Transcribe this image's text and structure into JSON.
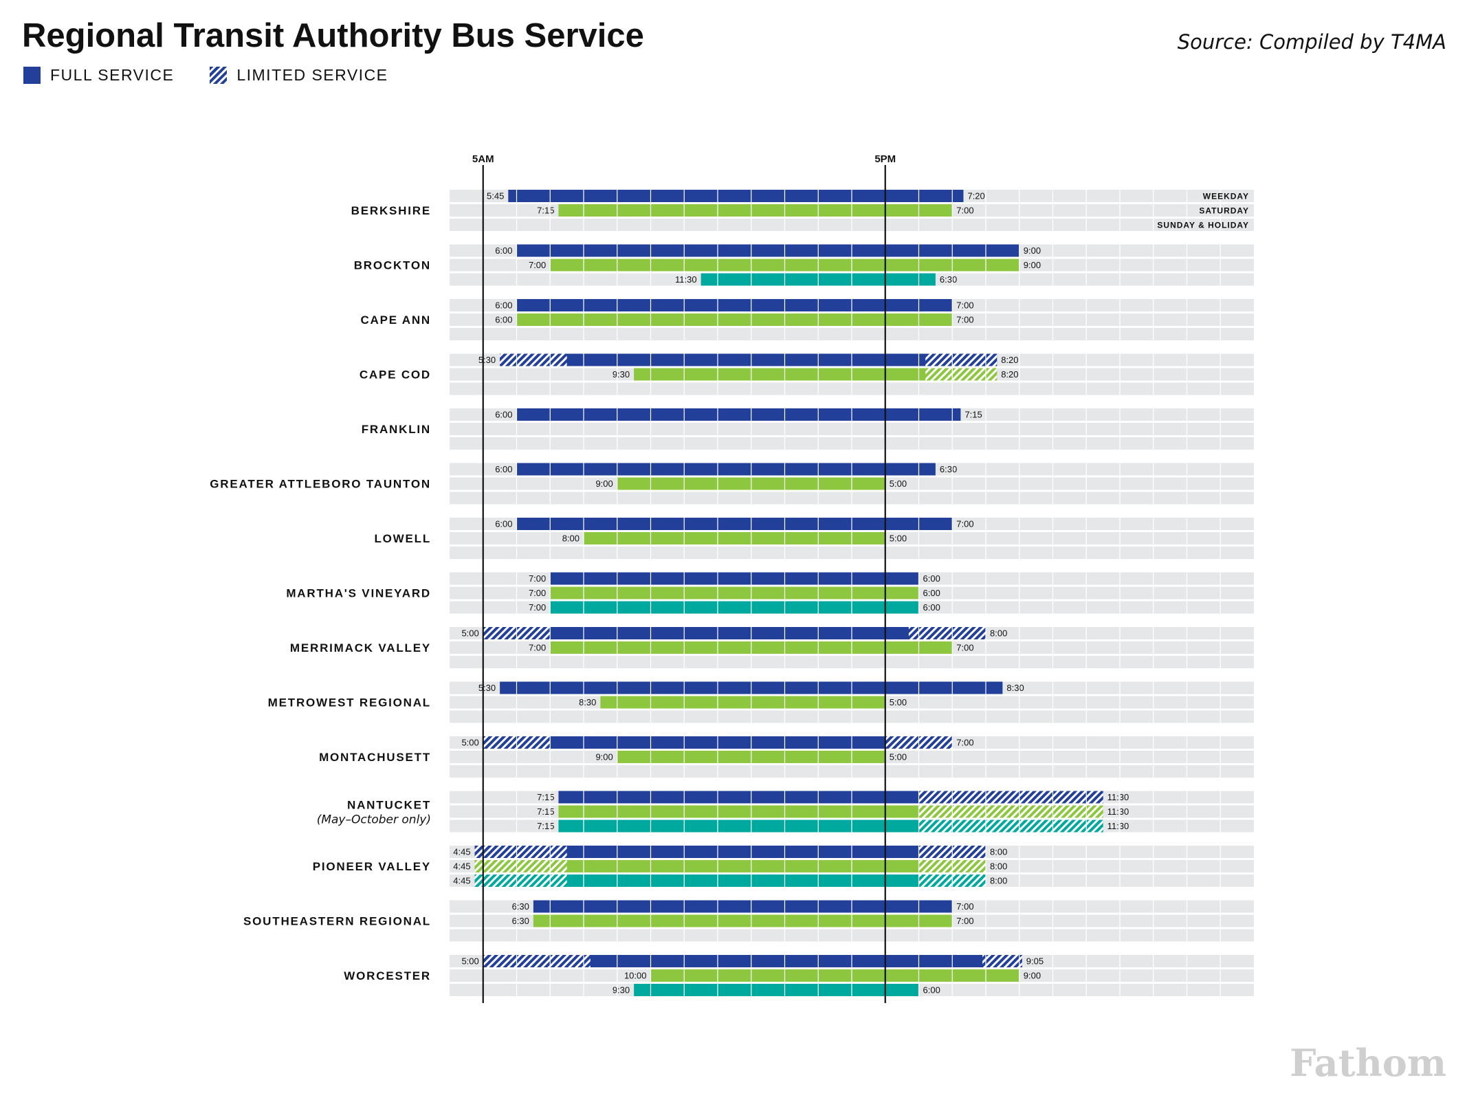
{
  "header": {
    "title": "Regional Transit Authority Bus Service",
    "source": "Source: Compiled by T4MA",
    "logo": "Fathom"
  },
  "legend": {
    "full_label": "FULL SERVICE",
    "limited_label": "LIMITED SERVICE"
  },
  "colors": {
    "weekday": "#22409a",
    "saturday": "#8dc63f",
    "sunday": "#00a99d",
    "track": "#e6e7e8"
  },
  "chart_data": {
    "type": "gantt",
    "axis": {
      "start_hour": 4,
      "end_hour": 28,
      "markers": [
        {
          "hour": 5,
          "label": "5AM"
        },
        {
          "hour": 17,
          "label": "5PM"
        }
      ]
    },
    "day_types": [
      "WEEKDAY",
      "SATURDAY",
      "SUNDAY & HOLIDAY"
    ],
    "agencies": [
      {
        "name": "BERKSHIRE",
        "services": [
          {
            "day": 0,
            "start": 5.75,
            "end": 19.333,
            "start_label": "5:45",
            "end_label": "7:20",
            "limited": []
          },
          {
            "day": 1,
            "start": 7.25,
            "end": 19.0,
            "start_label": "7:15",
            "end_label": "7:00",
            "limited": []
          }
        ]
      },
      {
        "name": "BROCKTON",
        "services": [
          {
            "day": 0,
            "start": 6.0,
            "end": 21.0,
            "start_label": "6:00",
            "end_label": "9:00",
            "limited": []
          },
          {
            "day": 1,
            "start": 7.0,
            "end": 21.0,
            "start_label": "7:00",
            "end_label": "9:00",
            "limited": []
          },
          {
            "day": 2,
            "start": 11.5,
            "end": 18.5,
            "start_label": "11:30",
            "end_label": "6:30",
            "limited": []
          }
        ]
      },
      {
        "name": "CAPE ANN",
        "services": [
          {
            "day": 0,
            "start": 6.0,
            "end": 19.0,
            "start_label": "6:00",
            "end_label": "7:00",
            "limited": []
          },
          {
            "day": 1,
            "start": 6.0,
            "end": 19.0,
            "start_label": "6:00",
            "end_label": "7:00",
            "limited": []
          }
        ]
      },
      {
        "name": "CAPE COD",
        "services": [
          {
            "day": 0,
            "start": 5.5,
            "end": 20.333,
            "start_label": "5:30",
            "end_label": "8:20",
            "limited": [
              [
                5.5,
                7.5
              ],
              [
                18.2,
                20.333
              ]
            ]
          },
          {
            "day": 1,
            "start": 9.5,
            "end": 20.333,
            "start_label": "9:30",
            "end_label": "8:20",
            "limited": [
              [
                18.2,
                20.333
              ]
            ]
          }
        ]
      },
      {
        "name": "FRANKLIN",
        "services": [
          {
            "day": 0,
            "start": 6.0,
            "end": 19.25,
            "start_label": "6:00",
            "end_label": "7:15",
            "limited": []
          }
        ]
      },
      {
        "name": "GREATER ATTLEBORO TAUNTON",
        "services": [
          {
            "day": 0,
            "start": 6.0,
            "end": 18.5,
            "start_label": "6:00",
            "end_label": "6:30",
            "limited": []
          },
          {
            "day": 1,
            "start": 9.0,
            "end": 17.0,
            "start_label": "9:00",
            "end_label": "5:00",
            "limited": []
          }
        ]
      },
      {
        "name": "LOWELL",
        "services": [
          {
            "day": 0,
            "start": 6.0,
            "end": 19.0,
            "start_label": "6:00",
            "end_label": "7:00",
            "limited": []
          },
          {
            "day": 1,
            "start": 8.0,
            "end": 17.0,
            "start_label": "8:00",
            "end_label": "5:00",
            "limited": []
          }
        ]
      },
      {
        "name": "MARTHA'S VINEYARD",
        "services": [
          {
            "day": 0,
            "start": 7.0,
            "end": 18.0,
            "start_label": "7:00",
            "end_label": "6:00",
            "limited": []
          },
          {
            "day": 1,
            "start": 7.0,
            "end": 18.0,
            "start_label": "7:00",
            "end_label": "6:00",
            "limited": []
          },
          {
            "day": 2,
            "start": 7.0,
            "end": 18.0,
            "start_label": "7:00",
            "end_label": "6:00",
            "limited": []
          }
        ]
      },
      {
        "name": "MERRIMACK VALLEY",
        "services": [
          {
            "day": 0,
            "start": 5.0,
            "end": 20.0,
            "start_label": "5:00",
            "end_label": "8:00",
            "limited": [
              [
                5.0,
                7.0
              ],
              [
                17.7,
                20.0
              ]
            ]
          },
          {
            "day": 1,
            "start": 7.0,
            "end": 19.0,
            "start_label": "7:00",
            "end_label": "7:00",
            "limited": []
          }
        ]
      },
      {
        "name": "METROWEST REGIONAL",
        "services": [
          {
            "day": 0,
            "start": 5.5,
            "end": 20.5,
            "start_label": "5:30",
            "end_label": "8:30",
            "limited": []
          },
          {
            "day": 1,
            "start": 8.5,
            "end": 17.0,
            "start_label": "8:30",
            "end_label": "5:00",
            "limited": []
          }
        ]
      },
      {
        "name": "MONTACHUSETT",
        "services": [
          {
            "day": 0,
            "start": 5.0,
            "end": 19.0,
            "start_label": "5:00",
            "end_label": "7:00",
            "limited": [
              [
                5.0,
                7.0
              ],
              [
                17.0,
                19.0
              ]
            ]
          },
          {
            "day": 1,
            "start": 9.0,
            "end": 17.0,
            "start_label": "9:00",
            "end_label": "5:00",
            "limited": []
          }
        ]
      },
      {
        "name": "NANTUCKET",
        "sub": "(May–October only)",
        "services": [
          {
            "day": 0,
            "start": 7.25,
            "end": 23.5,
            "start_label": "7:15",
            "end_label": "11:30",
            "limited": [
              [
                18.0,
                23.5
              ]
            ]
          },
          {
            "day": 1,
            "start": 7.25,
            "end": 23.5,
            "start_label": "7:15",
            "end_label": "11:30",
            "limited": [
              [
                18.0,
                23.5
              ]
            ]
          },
          {
            "day": 2,
            "start": 7.25,
            "end": 23.5,
            "start_label": "7:15",
            "end_label": "11:30",
            "limited": [
              [
                18.0,
                23.5
              ]
            ]
          }
        ]
      },
      {
        "name": "PIONEER VALLEY",
        "services": [
          {
            "day": 0,
            "start": 4.75,
            "end": 20.0,
            "start_label": "4:45",
            "end_label": "8:00",
            "limited": [
              [
                4.75,
                7.5
              ],
              [
                18.0,
                20.0
              ]
            ]
          },
          {
            "day": 1,
            "start": 4.75,
            "end": 20.0,
            "start_label": "4:45",
            "end_label": "8:00",
            "limited": [
              [
                4.75,
                7.5
              ],
              [
                18.0,
                20.0
              ]
            ]
          },
          {
            "day": 2,
            "start": 4.75,
            "end": 20.0,
            "start_label": "4:45",
            "end_label": "8:00",
            "limited": [
              [
                4.75,
                7.5
              ],
              [
                18.0,
                20.0
              ]
            ]
          }
        ]
      },
      {
        "name": "SOUTHEASTERN REGIONAL",
        "services": [
          {
            "day": 0,
            "start": 6.5,
            "end": 19.0,
            "start_label": "6:30",
            "end_label": "7:00",
            "limited": []
          },
          {
            "day": 1,
            "start": 6.5,
            "end": 19.0,
            "start_label": "6:30",
            "end_label": "7:00",
            "limited": []
          }
        ]
      },
      {
        "name": "WORCESTER",
        "services": [
          {
            "day": 0,
            "start": 5.0,
            "end": 21.083,
            "start_label": "5:00",
            "end_label": "9:05",
            "limited": [
              [
                5.0,
                8.2
              ],
              [
                19.9,
                21.083
              ]
            ]
          },
          {
            "day": 1,
            "start": 10.0,
            "end": 21.0,
            "start_label": "10:00",
            "end_label": "9:00",
            "limited": []
          },
          {
            "day": 2,
            "start": 9.5,
            "end": 18.0,
            "start_label": "9:30",
            "end_label": "6:00",
            "limited": []
          }
        ]
      }
    ]
  }
}
